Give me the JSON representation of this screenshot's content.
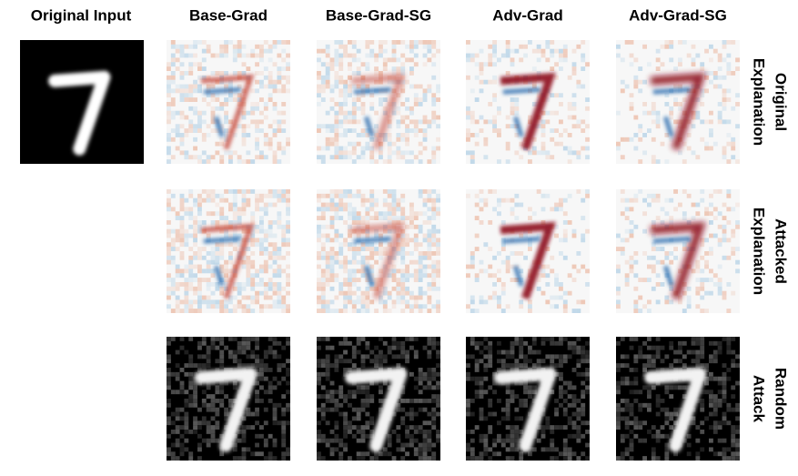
{
  "header": {
    "original_input": "Original Input",
    "columns": [
      "Base-Grad",
      "Base-Grad-SG",
      "Adv-Grad",
      "Adv-Grad-SG"
    ]
  },
  "rows": [
    {
      "label_lines": [
        "Original",
        "Explanation"
      ]
    },
    {
      "label_lines": [
        "Attacked",
        "Explanation"
      ]
    },
    {
      "label_lines": [
        "Random",
        "Attack"
      ]
    }
  ]
}
